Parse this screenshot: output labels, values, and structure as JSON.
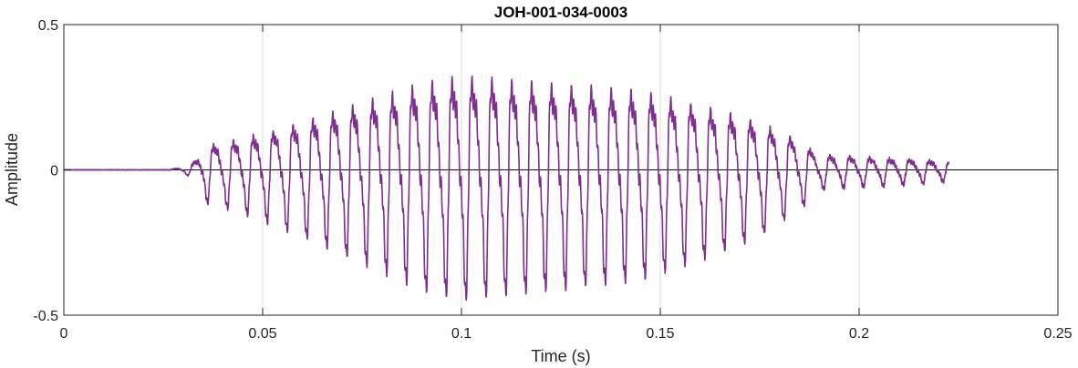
{
  "chart_data": {
    "type": "line",
    "title": "JOH-001-034-0003",
    "xlabel": "Time (s)",
    "ylabel": "Amplitude",
    "xlim": [
      0,
      0.25
    ],
    "ylim": [
      -0.5,
      0.5
    ],
    "grid": true,
    "x_ticks": [
      0,
      0.05,
      0.1,
      0.15,
      0.2,
      0.25
    ],
    "x_tick_labels": [
      "0",
      "0.05",
      "0.1",
      "0.15",
      "0.2",
      "0.25"
    ],
    "y_ticks": [
      -0.5,
      0,
      0.5
    ],
    "y_tick_labels": [
      "-0.5",
      "0",
      "0.5"
    ],
    "series": [
      {
        "color": "#7E2F8E",
        "signal": {
          "t_start": 0.0,
          "t_end": 0.2225,
          "onset": 0.027,
          "fundamental_hz": 200,
          "envelope_t": [
            0.0,
            0.027,
            0.032,
            0.036,
            0.045,
            0.06,
            0.075,
            0.09,
            0.1,
            0.115,
            0.13,
            0.145,
            0.16,
            0.175,
            0.185,
            0.19,
            0.205,
            0.2225
          ],
          "envelope_a": [
            0.0,
            0.002,
            0.02,
            0.1,
            0.13,
            0.2,
            0.28,
            0.36,
            0.39,
            0.37,
            0.35,
            0.33,
            0.27,
            0.2,
            0.12,
            0.06,
            0.05,
            0.035
          ]
        }
      }
    ]
  }
}
